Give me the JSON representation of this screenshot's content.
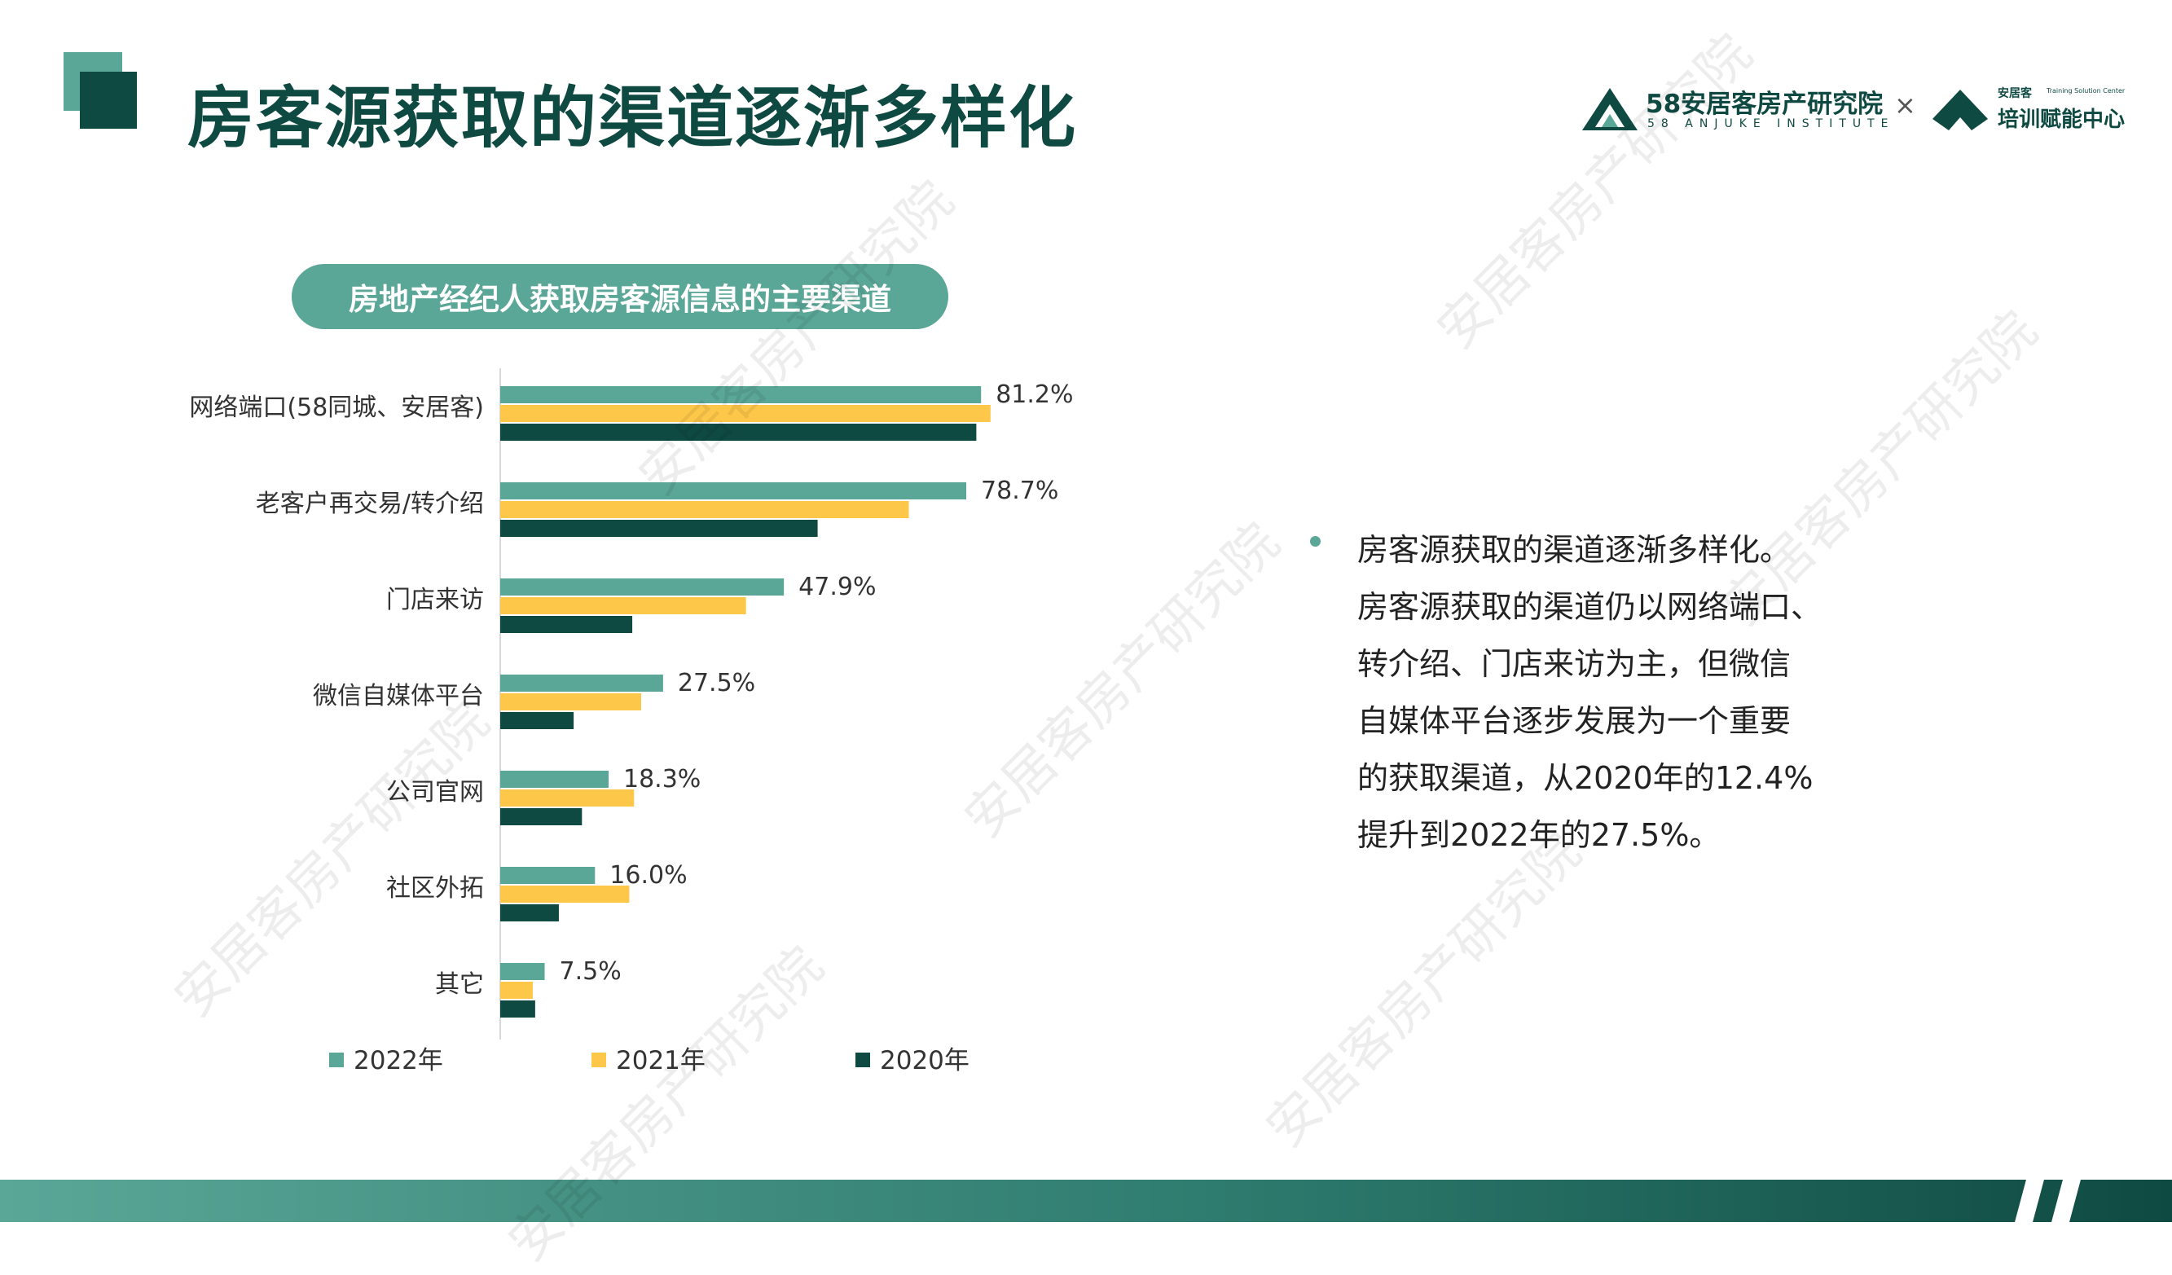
{
  "page": {
    "title": "房客源获取的渠道逐渐多样化"
  },
  "logos": {
    "brand_58": "58安居客房产研究院",
    "brand_58_sub": "58 ANJUKE INSTITUTE",
    "times": "×",
    "training_small": "安居客",
    "training_tiny": "Training Solution Center",
    "training": "培训赋能中心"
  },
  "chart_title": "房地产经纪人获取房客源信息的主要渠道",
  "chart_data": {
    "type": "bar",
    "orientation": "horizontal",
    "categories": [
      "网络端口(58同城、安居客)",
      "老客户再交易/转介绍",
      "门店来访",
      "微信自媒体平台",
      "公司官网",
      "社区外拓",
      "其它"
    ],
    "series": [
      {
        "name": "2022年",
        "color": "#5aa697",
        "values": [
          81.2,
          78.7,
          47.9,
          27.5,
          18.3,
          16.0,
          7.5
        ]
      },
      {
        "name": "2021年",
        "color": "#fdc74a",
        "values": [
          82.8,
          69.0,
          41.5,
          23.8,
          22.6,
          21.8,
          5.5
        ]
      },
      {
        "name": "2020年",
        "color": "#0f4a42",
        "values": [
          80.4,
          53.6,
          22.3,
          12.4,
          13.8,
          9.9,
          5.9
        ]
      }
    ],
    "data_labels": [
      "81.2%",
      "78.7%",
      "47.9%",
      "27.5%",
      "18.3%",
      "16.0%",
      "7.5%"
    ],
    "xlim": [
      0,
      100
    ],
    "grid": false,
    "legend_position": "bottom"
  },
  "bullet": {
    "text": "房客源获取的渠道逐渐多样化。\n房客源获取的渠道仍以网络端口、\n转介绍、门店来访为主，但微信\n自媒体平台逐步发展为一个重要\n的获取渠道，从2020年的12.4%\n提升到2022年的27.5%。"
  },
  "watermark": "安居客房产研究院",
  "colors": {
    "accent": "#5aa697",
    "dark": "#0f4a42",
    "yellow": "#fdc74a"
  }
}
